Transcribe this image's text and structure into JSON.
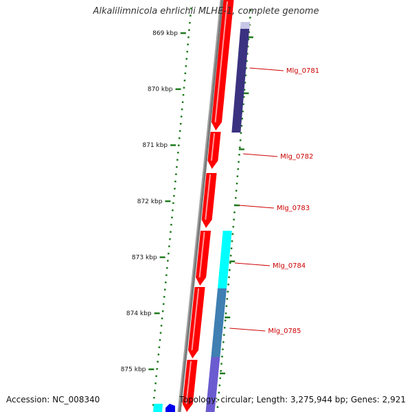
{
  "title": "Alkalilimnicola ehrlichii MLHE-1, complete genome",
  "accession_text": "Accession: NC_008340",
  "summary_text": "Topology: circular; Length: 3,275,944 bp; Genes: 2,921",
  "colors": {
    "backbone": "#7a7a7a",
    "forward_gene": "#ff0000",
    "tick": "#1f7a1f",
    "gene_label": "#cc0000",
    "cyan_feature": "#00ffff",
    "purple_feature": "#3a3280",
    "blue_feature": "#0000ee"
  },
  "ticks": [
    {
      "label": "869 kbp"
    },
    {
      "label": "870 kbp"
    },
    {
      "label": "871 kbp"
    },
    {
      "label": "872 kbp"
    },
    {
      "label": "873 kbp"
    },
    {
      "label": "874 kbp"
    },
    {
      "label": "875 kbp"
    }
  ],
  "genes": [
    {
      "name": "Mlg_0781"
    },
    {
      "name": "Mlg_0782"
    },
    {
      "name": "Mlg_0783"
    },
    {
      "name": "Mlg_0784"
    },
    {
      "name": "Mlg_0785"
    }
  ]
}
